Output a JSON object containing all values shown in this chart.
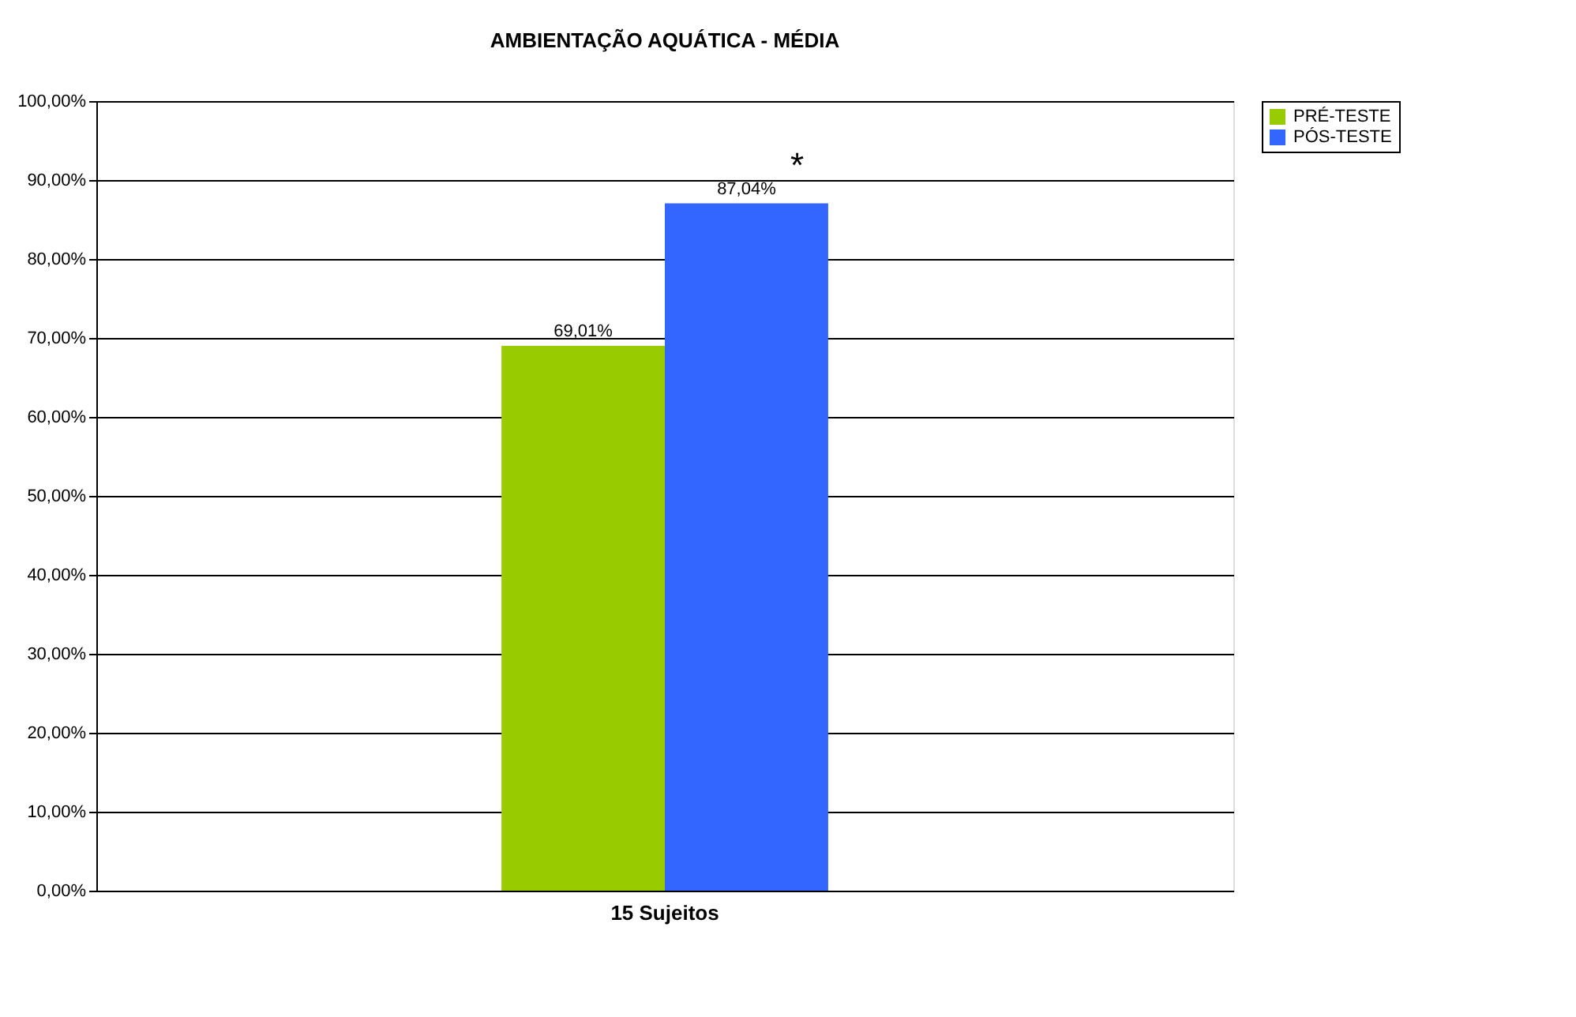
{
  "chart_data": {
    "type": "bar",
    "title": "AMBIENTAÇÃO AQUÁTICA - MÉDIA",
    "categories": [
      "15 Sujeitos"
    ],
    "series": [
      {
        "name": "PRÉ-TESTE",
        "color": "#99cc00",
        "values": [
          69.01
        ],
        "value_labels": [
          "69,01%"
        ]
      },
      {
        "name": "PÓS-TESTE",
        "color": "#3366ff",
        "values": [
          87.04
        ],
        "value_labels": [
          "87,04%"
        ]
      }
    ],
    "ylim": [
      0,
      100
    ],
    "yticks": [
      {
        "value": 0,
        "label": "0,00%"
      },
      {
        "value": 10,
        "label": "10,00%"
      },
      {
        "value": 20,
        "label": "20,00%"
      },
      {
        "value": 30,
        "label": "30,00%"
      },
      {
        "value": 40,
        "label": "40,00%"
      },
      {
        "value": 50,
        "label": "50,00%"
      },
      {
        "value": 60,
        "label": "60,00%"
      },
      {
        "value": 70,
        "label": "70,00%"
      },
      {
        "value": 80,
        "label": "80,00%"
      },
      {
        "value": 90,
        "label": "90,00%"
      },
      {
        "value": 100,
        "label": "100,00%"
      }
    ],
    "annotations": [
      "*"
    ],
    "grid": "y",
    "legend": "right"
  }
}
